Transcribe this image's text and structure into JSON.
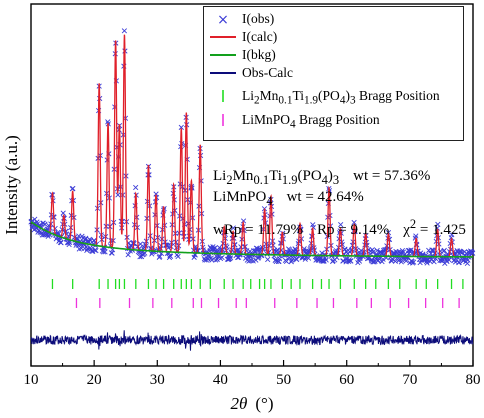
{
  "chart_data": {
    "type": "line",
    "xlabel_italic": "2θ",
    "xlabel_unit": "(°)",
    "ylabel": "Intensity (a.u.)",
    "xlim": [
      10,
      80
    ],
    "xticks": [
      10,
      20,
      30,
      40,
      50,
      60,
      70,
      80
    ],
    "xtick_labels": [
      "10",
      "20",
      "30",
      "40",
      "50",
      "60",
      "70",
      "80"
    ],
    "grid": false,
    "legend_position": "top-right",
    "colors": {
      "obs": "#3b3bd6",
      "calc": "#e0202a",
      "bkg": "#12a01c",
      "diff": "#0c0c7a",
      "bragg1": "#22dd22",
      "bragg2": "#ee33dd"
    },
    "series": [
      {
        "name": "I(obs)",
        "style": "markers-x"
      },
      {
        "name": "I(calc)",
        "style": "line"
      },
      {
        "name": "I(bkg)",
        "style": "line"
      },
      {
        "name": "Obs-Calc",
        "style": "line"
      }
    ],
    "peaks": [
      {
        "x": 13.4,
        "height": 0.18
      },
      {
        "x": 15.2,
        "height": 0.1
      },
      {
        "x": 16.6,
        "height": 0.22
      },
      {
        "x": 20.8,
        "height": 0.72
      },
      {
        "x": 22.2,
        "height": 0.55
      },
      {
        "x": 23.4,
        "height": 0.92
      },
      {
        "x": 24.0,
        "height": 0.55
      },
      {
        "x": 24.8,
        "height": 0.95
      },
      {
        "x": 26.6,
        "height": 0.25
      },
      {
        "x": 28.6,
        "height": 0.38
      },
      {
        "x": 29.8,
        "height": 0.25
      },
      {
        "x": 31.0,
        "height": 0.2
      },
      {
        "x": 32.6,
        "height": 0.3
      },
      {
        "x": 33.8,
        "height": 0.55
      },
      {
        "x": 34.6,
        "height": 0.62
      },
      {
        "x": 35.4,
        "height": 0.32
      },
      {
        "x": 36.8,
        "height": 0.48
      },
      {
        "x": 40.6,
        "height": 0.12
      },
      {
        "x": 42.0,
        "height": 0.1
      },
      {
        "x": 43.6,
        "height": 0.14
      },
      {
        "x": 47.0,
        "height": 0.2
      },
      {
        "x": 48.0,
        "height": 0.26
      },
      {
        "x": 49.8,
        "height": 0.1
      },
      {
        "x": 52.6,
        "height": 0.14
      },
      {
        "x": 54.6,
        "height": 0.12
      },
      {
        "x": 57.2,
        "height": 0.3
      },
      {
        "x": 59.0,
        "height": 0.12
      },
      {
        "x": 61.2,
        "height": 0.14
      },
      {
        "x": 63.0,
        "height": 0.1
      },
      {
        "x": 66.6,
        "height": 0.1
      },
      {
        "x": 71.0,
        "height": 0.08
      },
      {
        "x": 74.4,
        "height": 0.12
      },
      {
        "x": 76.6,
        "height": 0.08
      }
    ],
    "bragg_positions": {
      "Li2Mn0.1Ti1.9(PO4)3": [
        13.4,
        16.6,
        20.8,
        22.2,
        23.4,
        24.0,
        24.8,
        26.6,
        28.6,
        29.8,
        31.0,
        32.6,
        33.8,
        34.6,
        35.4,
        36.8,
        38.4,
        40.6,
        42.0,
        43.6,
        44.8,
        46.2,
        47.0,
        48.0,
        49.8,
        51.2,
        52.6,
        54.6,
        56.0,
        57.2,
        59.0,
        61.2,
        63.0,
        64.6,
        66.6,
        68.4,
        71.0,
        72.6,
        74.4,
        76.6,
        78.4
      ],
      "LiMnPO4": [
        17.2,
        20.9,
        25.6,
        29.3,
        32.3,
        35.7,
        37.0,
        39.7,
        42.5,
        44.1,
        48.6,
        52.1,
        55.3,
        57.9,
        61.6,
        63.9,
        66.9,
        69.8,
        72.5,
        75.2,
        77.8
      ]
    }
  },
  "legend": {
    "obs": "I(obs)",
    "calc": "I(calc)",
    "bkg": "I(bkg)",
    "diff": "Obs-Calc",
    "bragg1_pre": "Li",
    "bragg1_sub1": "2",
    "bragg1_mid1": "Mn",
    "bragg1_sub2": "0.1",
    "bragg1_mid2": "Ti",
    "bragg1_sub3": "1.9",
    "bragg1_mid3": "(PO",
    "bragg1_sub4": "4",
    "bragg1_mid4": ")",
    "bragg1_sub5": "3",
    "bragg1_suffix": " Bragg Position",
    "bragg2_pre": "LiMnPO",
    "bragg2_sub": "4",
    "bragg2_suffix": " Bragg Position"
  },
  "stats": {
    "phase1_pre": "Li",
    "phase1_sub1": "2",
    "phase1_mid1": "Mn",
    "phase1_sub2": "0.1",
    "phase1_mid2": "Ti",
    "phase1_sub3": "1.9",
    "phase1_mid3": "(PO",
    "phase1_sub4": "4",
    "phase1_mid4": ")",
    "phase1_sub5": "3",
    "phase1_wt": "wt = 57.36%",
    "phase2_pre": "LiMnPO",
    "phase2_sub": "4",
    "phase2_wt": "wt = 42.64%",
    "wrp": "wRp = 11.79%",
    "rp": "Rp = 9.14%",
    "chi_pre": "χ",
    "chi_sup": "2",
    "chi_val": " = 1.425"
  }
}
